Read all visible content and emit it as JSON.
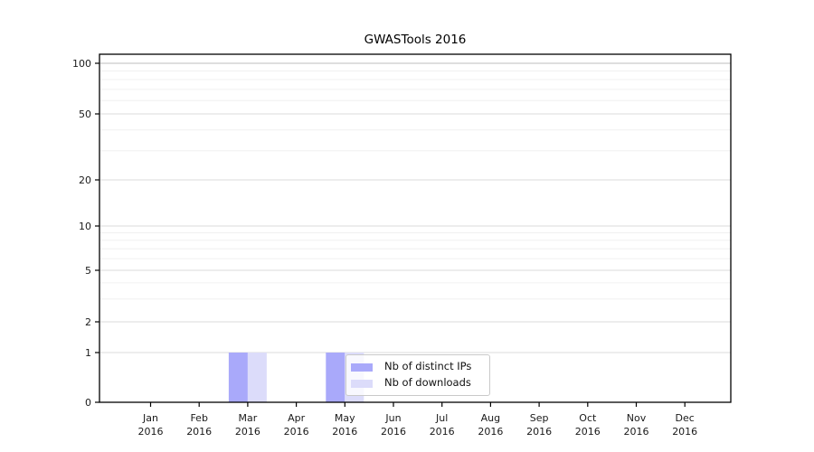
{
  "chart_data": {
    "type": "bar",
    "title": "GWASTools 2016",
    "year": "2016",
    "categories": [
      "Jan",
      "Feb",
      "Mar",
      "Apr",
      "May",
      "Jun",
      "Jul",
      "Aug",
      "Sep",
      "Oct",
      "Nov",
      "Dec"
    ],
    "series": [
      {
        "name": "Nb of distinct IPs",
        "color": "#a9a9fa",
        "values": [
          0,
          0,
          1,
          0,
          1,
          0,
          0,
          0,
          0,
          0,
          0,
          0
        ]
      },
      {
        "name": "Nb of downloads",
        "color": "#dcdcfa",
        "values": [
          0,
          0,
          1,
          0,
          1,
          0,
          0,
          0,
          0,
          0,
          0,
          0
        ]
      }
    ],
    "y_axis": {
      "scale": "log with zero baseline",
      "ticks": [
        0,
        1,
        2,
        5,
        10,
        20,
        50,
        100
      ],
      "minor_ticks": [
        3,
        4,
        6,
        7,
        8,
        9,
        30,
        40,
        60,
        70,
        80,
        90
      ],
      "range": [
        0,
        100
      ]
    },
    "x_axis": {
      "label_line1": "month",
      "label_line2": "year"
    },
    "grid": "horizontal, major and minor",
    "legend": {
      "position": "inside bottom center"
    }
  },
  "colors": {
    "background": "#ffffff",
    "axis_spine": "#000000",
    "grid_major": "#dbdbdb",
    "grid_minor": "#f0f0f0",
    "grid_top_100": "#bdbdbd",
    "tick_label": "#1a1a1a",
    "legend_border": "#c9c9c9"
  }
}
